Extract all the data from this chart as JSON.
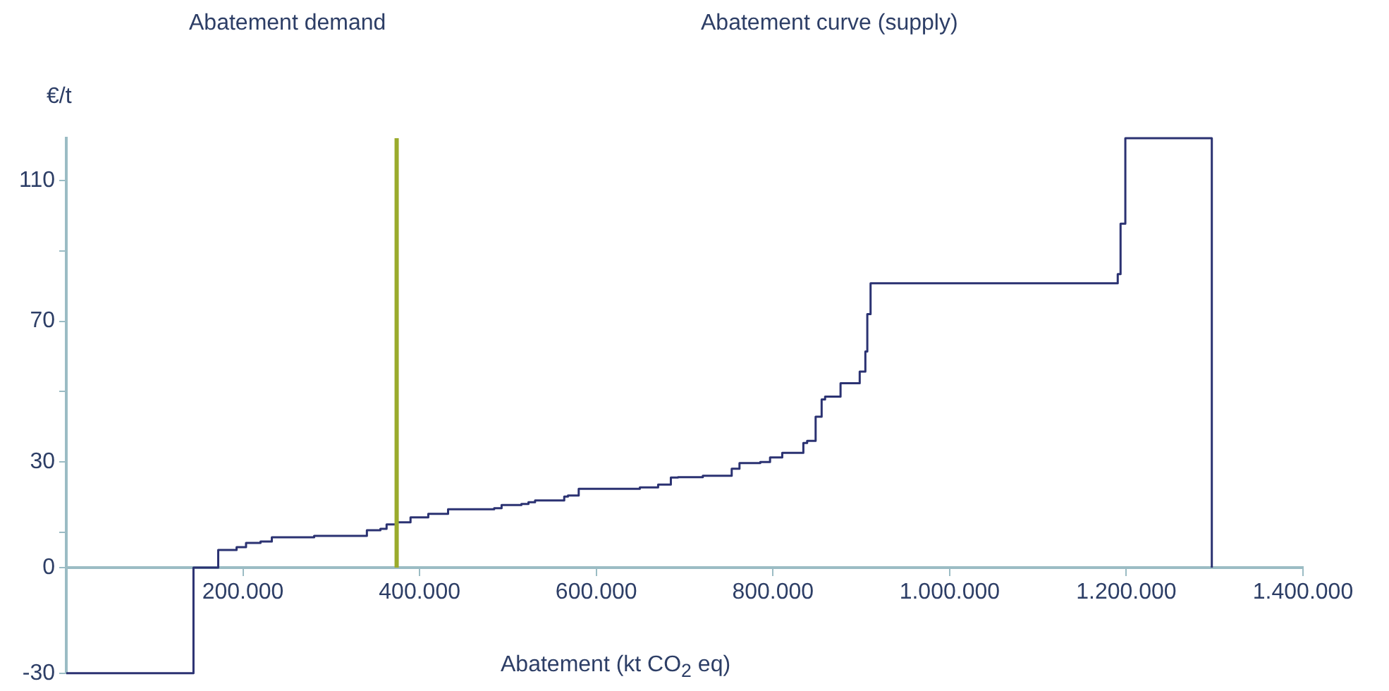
{
  "chart_data": {
    "type": "step",
    "xlabel": "Abatement (kt CO$_{2}$ eq)",
    "ylabel": "€/t",
    "annotations": [
      "Abatement demand",
      "Abatement curve (supply)"
    ],
    "x": [
      0,
      144000,
      172000,
      192800,
      203500,
      219900,
      232700,
      280600,
      340300,
      355600,
      362600,
      374300,
      389700,
      409800,
      432200,
      484400,
      492800,
      515200,
      523200,
      530700,
      563700,
      567900,
      580100,
      649300,
      670000,
      684400,
      692400,
      720600,
      753300,
      762100,
      785600,
      796700,
      810500,
      834400,
      838700,
      848300,
      855100,
      859000,
      876500,
      898200,
      904600,
      906800,
      910500,
      916900,
      1190300,
      1193500,
      1198900,
      1296800
    ],
    "series": [
      {
        "color": "#2b3272",
        "values": [
          -30,
          0,
          5,
          5.8,
          7,
          7.4,
          8.6,
          9,
          10.6,
          11,
          12.3,
          12.9,
          14.3,
          15.3,
          16.6,
          16.9,
          17.8,
          18.1,
          18.6,
          19.1,
          20.2,
          20.5,
          22.4,
          22.8,
          23.6,
          25.6,
          25.7,
          26.1,
          28.1,
          29.7,
          30,
          31.3,
          32.6,
          35.4,
          36,
          42.9,
          47.8,
          48.6,
          52.4,
          55.7,
          61.4,
          72,
          80.8,
          80.8,
          83.4,
          97.7,
          122,
          0
        ]
      }
    ],
    "xlim": [
      0,
      1400000
    ],
    "xticks": [
      {
        "value": 200000,
        "label": "200.000"
      },
      {
        "value": 400000,
        "label": "400.000"
      },
      {
        "value": 600000,
        "label": "600.000"
      },
      {
        "value": 800000,
        "label": "800.000"
      },
      {
        "value": 1000000,
        "label": "1.000.000"
      },
      {
        "value": 1200000,
        "label": "1.200.000"
      },
      {
        "value": 1400000,
        "label": "1.400.000"
      }
    ],
    "ylim": [
      -30,
      122
    ],
    "yticks": [
      -30,
      0,
      {
        "value": 10,
        "label": null
      },
      30,
      {
        "value": 50,
        "label": null
      },
      70,
      {
        "value": 90,
        "label": null
      },
      110
    ],
    "ref_lines": [
      {
        "axis": "x",
        "value": 374000,
        "color": "#9aab2c"
      }
    ],
    "grid": false,
    "legend": false,
    "marker": "none",
    "line_style": "solid"
  }
}
